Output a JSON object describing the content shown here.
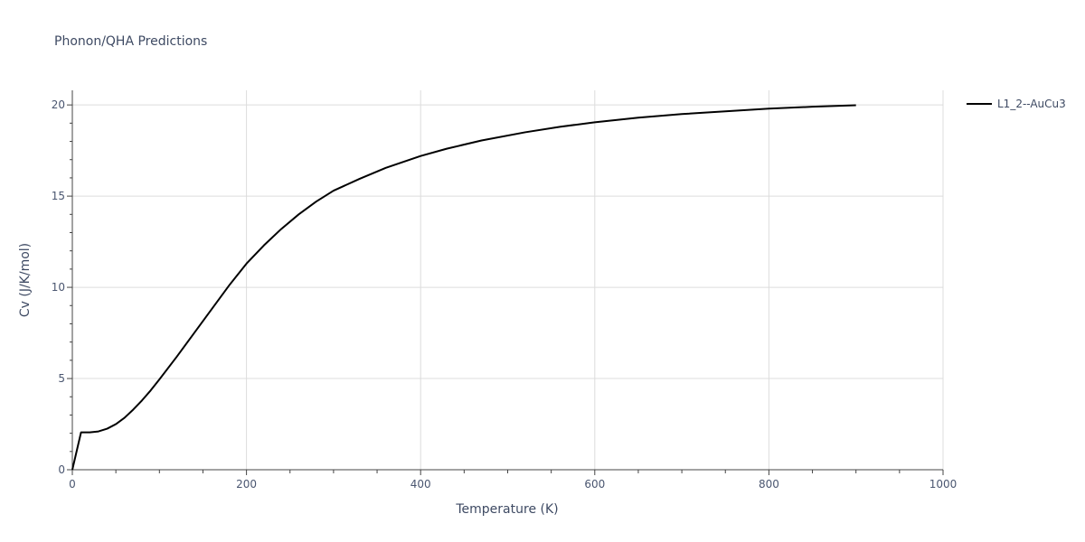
{
  "chart_data": {
    "type": "line",
    "title": "Phonon/QHA Predictions",
    "xlabel": "Temperature (K)",
    "ylabel": "Cv (J/K/mol)",
    "xlim": [
      0,
      1000
    ],
    "ylim": [
      0,
      20.8
    ],
    "x_ticks": [
      0,
      200,
      400,
      600,
      800,
      1000
    ],
    "x_tick_labels": [
      "0",
      "200",
      "400",
      "600",
      "800",
      "1000"
    ],
    "y_ticks": [
      0,
      5,
      10,
      15,
      20
    ],
    "y_tick_labels": [
      "0",
      "5",
      "10",
      "15",
      "20"
    ],
    "grid": true,
    "legend_position": "top-right-outside",
    "series": [
      {
        "name": "L1_2--AuCu3",
        "color": "#000000",
        "x": [
          0,
          10,
          20,
          30,
          40,
          50,
          60,
          70,
          80,
          90,
          100,
          120,
          140,
          160,
          180,
          200,
          220,
          240,
          260,
          280,
          300,
          330,
          360,
          400,
          430,
          470,
          520,
          560,
          600,
          650,
          700,
          750,
          800,
          850,
          900
        ],
        "y": [
          0,
          2.05,
          2.05,
          2.1,
          2.25,
          2.5,
          2.85,
          3.3,
          3.8,
          4.35,
          4.95,
          6.2,
          7.5,
          8.8,
          10.1,
          11.3,
          12.3,
          13.2,
          14.0,
          14.7,
          15.3,
          15.95,
          16.55,
          17.2,
          17.6,
          18.05,
          18.5,
          18.8,
          19.05,
          19.3,
          19.5,
          19.65,
          19.8,
          19.9,
          19.98
        ]
      }
    ]
  }
}
